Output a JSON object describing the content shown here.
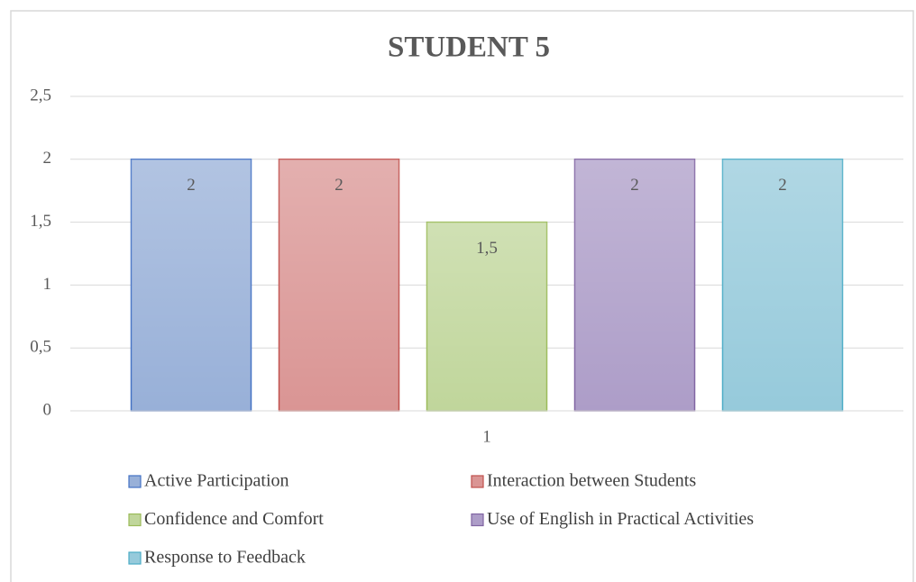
{
  "chart_data": {
    "type": "bar",
    "title": "STUDENT 5",
    "categories": [
      "1"
    ],
    "series": [
      {
        "name": "Active Participation",
        "color": "#98b0d8",
        "edgecolor": "#4472c4",
        "values": [
          2
        ]
      },
      {
        "name": "Interaction between Students",
        "color": "#da9594",
        "edgecolor": "#c0504d",
        "values": [
          2
        ]
      },
      {
        "name": "Confidence and Comfort",
        "color": "#c0d69b",
        "edgecolor": "#9bbb59",
        "values": [
          1.5
        ],
        "value_labels": [
          "1,5"
        ]
      },
      {
        "name": "Use of English in Practical Activities",
        "color": "#ad9dc8",
        "edgecolor": "#8064a2",
        "values": [
          2
        ]
      },
      {
        "name": "Response to Feedback",
        "color": "#96cadb",
        "edgecolor": "#4bacc6",
        "values": [
          2
        ]
      }
    ],
    "ylim": [
      0,
      2.5
    ],
    "yticks": [
      0,
      {
        "value": 0.5,
        "label": "0,5"
      },
      1,
      {
        "value": 1.5,
        "label": "1,5"
      },
      2,
      {
        "value": 2.5,
        "label": "2,5"
      }
    ],
    "grid": true,
    "legend": "bottom"
  }
}
